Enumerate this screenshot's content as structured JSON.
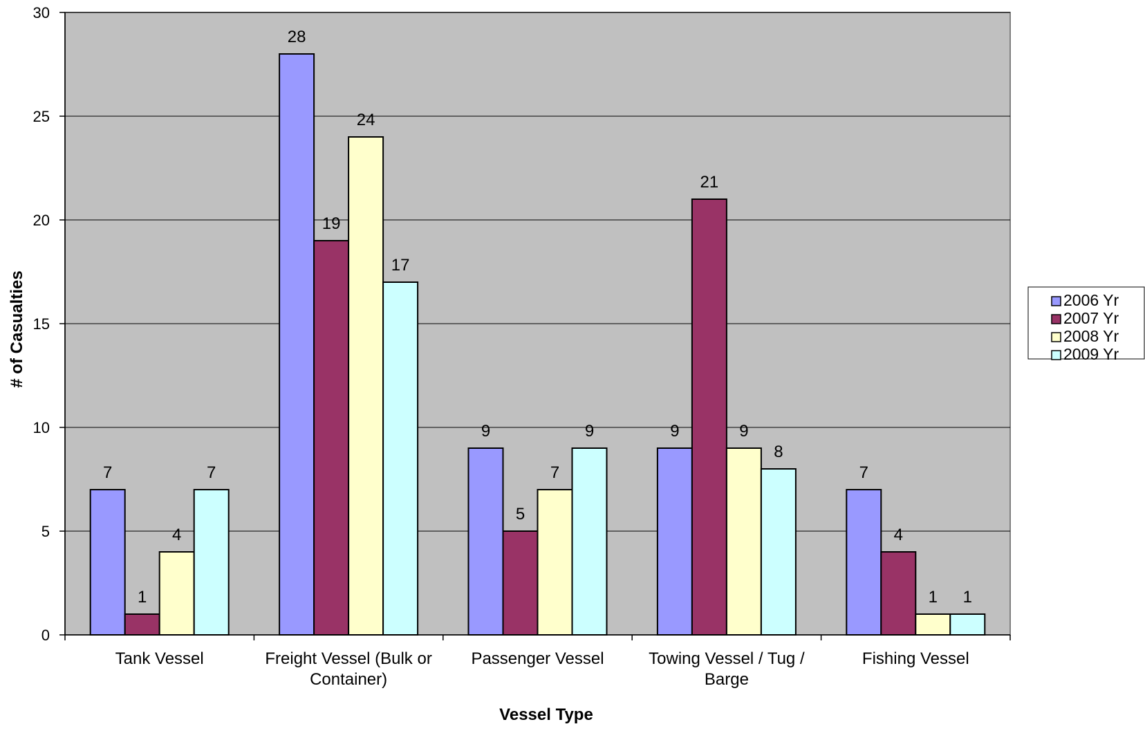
{
  "chart_data": {
    "type": "bar",
    "title": "",
    "xlabel": "Vessel Type",
    "ylabel": "# of Casualties",
    "ylim": [
      0,
      30
    ],
    "yticks": [
      0,
      5,
      10,
      15,
      20,
      25,
      30
    ],
    "grid": true,
    "legend_position": "right",
    "plot_background": "#C0C0C0",
    "categories": [
      [
        "Tank Vessel"
      ],
      [
        "Freight Vessel (Bulk or",
        "Container)"
      ],
      [
        "Passenger Vessel"
      ],
      [
        "Towing Vessel / Tug /",
        "Barge"
      ],
      [
        "Fishing Vessel"
      ]
    ],
    "series": [
      {
        "name": "2006 Yr",
        "color": "#9999FF",
        "values": [
          7,
          28,
          9,
          9,
          7
        ]
      },
      {
        "name": "2007 Yr",
        "color": "#993366",
        "values": [
          1,
          19,
          5,
          21,
          4
        ]
      },
      {
        "name": "2008 Yr",
        "color": "#FFFFCC",
        "values": [
          4,
          24,
          7,
          9,
          1
        ]
      },
      {
        "name": "2009 Yr",
        "color": "#CCFFFF",
        "values": [
          7,
          17,
          9,
          8,
          1
        ]
      }
    ]
  }
}
